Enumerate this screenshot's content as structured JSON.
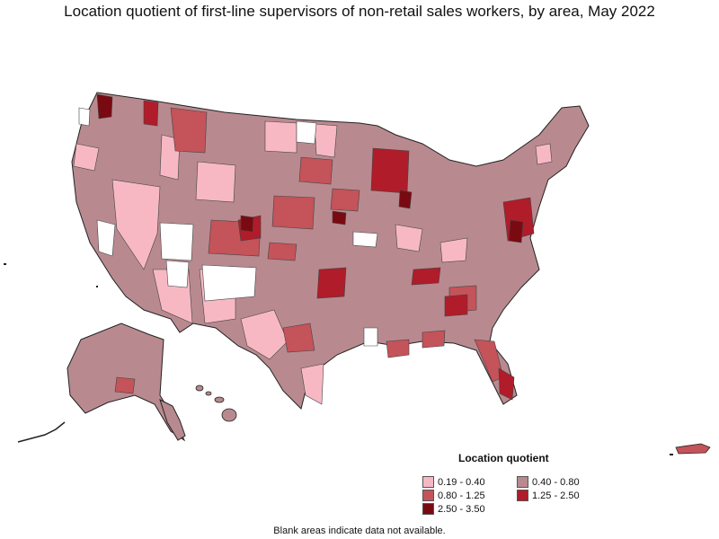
{
  "title": "Location quotient of first-line supervisors of non-retail sales workers, by area, May 2022",
  "legend": {
    "title": "Location quotient",
    "items": [
      {
        "label": "0.19 - 0.40",
        "color": "#f7b8c4"
      },
      {
        "label": "0.40 - 0.80",
        "color": "#b88a8f"
      },
      {
        "label": "0.80 - 1.25",
        "color": "#c4535a"
      },
      {
        "label": "1.25 - 2.50",
        "color": "#b01c2a"
      },
      {
        "label": "2.50 - 3.50",
        "color": "#7a0a12"
      }
    ]
  },
  "note": "Blank areas indicate data not available.",
  "colors": {
    "no_data": "#ffffff",
    "border": "#222222"
  }
}
